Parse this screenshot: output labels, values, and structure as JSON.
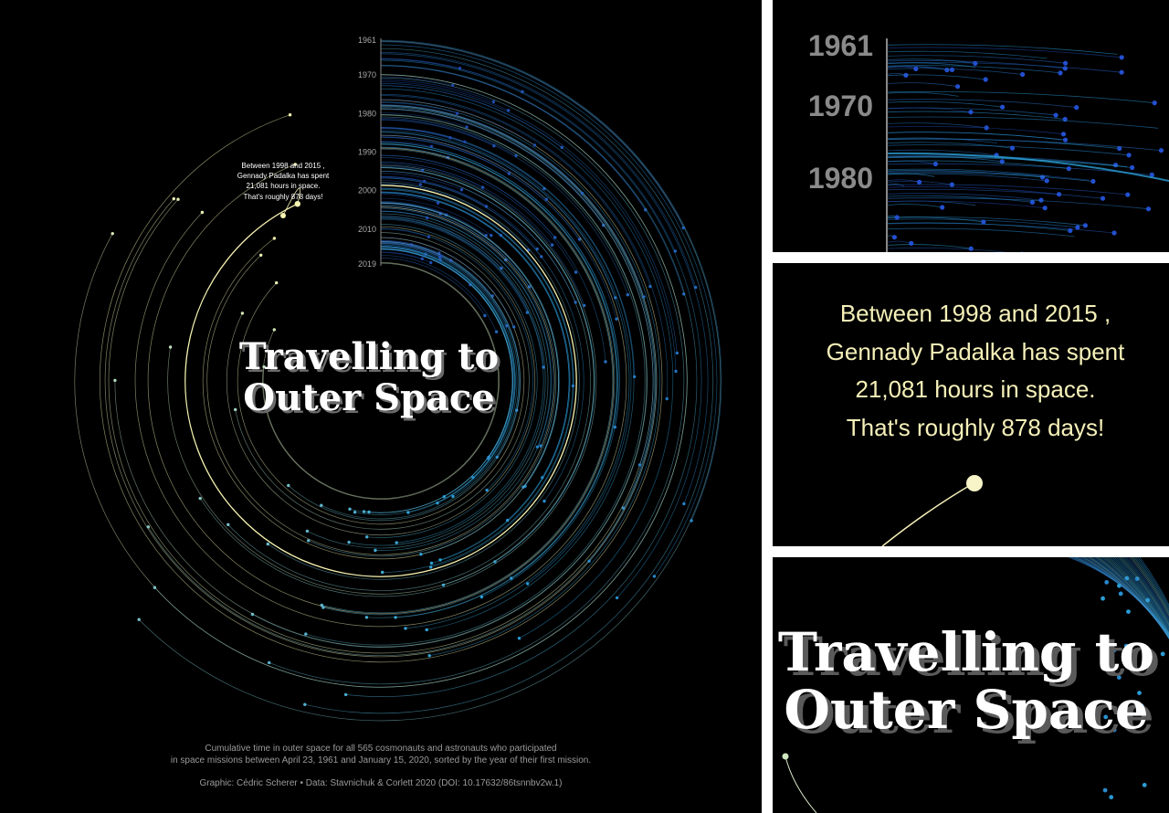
{
  "chart_data": {
    "type": "radial-arc",
    "title_lines": [
      "Travelling to",
      "Outer Space"
    ],
    "year_ticks": [
      "1961",
      "1970",
      "1980",
      "1990",
      "2000",
      "2010",
      "2019"
    ],
    "annotation": [
      "Between 1998 and 2015 ,",
      "Gennady Padalka has spent",
      "21,081 hours in space.",
      "That's roughly 878 days!"
    ],
    "caption": [
      "Cumulative time in outer space for all 565 cosmonauts and astronauts who participated",
      "in space missions between April 23, 1961 and January 15, 2020, sorted by the year of their first mission."
    ],
    "credits": "Graphic: Cédric Scherer • Data: Stavnichuk & Corlett 2020 (DOI: 10.17632/86tsnnbv2w.1)",
    "n_people": 565,
    "first_year": 1961,
    "last_year": 2019,
    "highlight": {
      "name": "Gennady Padalka",
      "hours": 21081,
      "days": 878
    },
    "colors": {
      "background": "#000000",
      "low": "#1f3fa8",
      "mid": "#2a9fd6",
      "high": "#f7f4b2",
      "axis": "#888888",
      "text": "#ffffff",
      "shadow": "#666666"
    }
  }
}
